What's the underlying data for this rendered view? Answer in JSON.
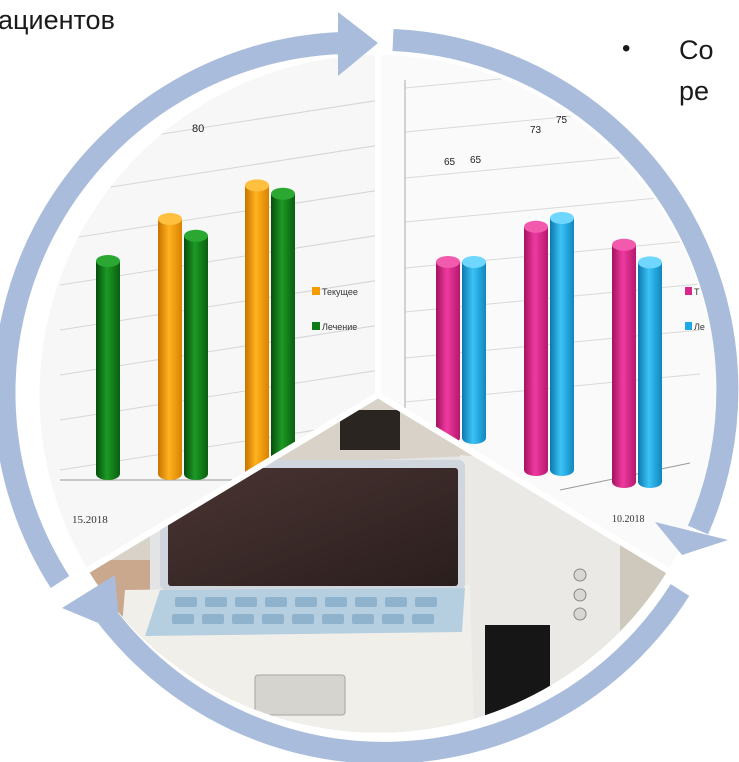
{
  "slide_text": {
    "top_left": "ациентов",
    "top_right_line1": "Со",
    "top_right_line2": "ре",
    "bullet": "•"
  },
  "colors": {
    "cycle_arrow": "#a9bcdb",
    "orange": "#f59c00",
    "green": "#0f7a16",
    "magenta": "#d8268b",
    "cyan": "#1ea8e6",
    "device_body": "#e9e7e3",
    "device_screen": "#3e2c2a",
    "keypad": "#b6cfe0"
  },
  "chart_data": [
    {
      "type": "bar",
      "partial": true,
      "categories": [
        "15.2018",
        "",
        ""
      ],
      "series": [
        {
          "name": "Текущее",
          "values": [
            null,
            80,
            88
          ]
        },
        {
          "name": "Лечение",
          "values": [
            70,
            76,
            86
          ]
        }
      ],
      "data_labels": [
        "80"
      ]
    },
    {
      "type": "bar",
      "partial": true,
      "categories": [
        "",
        "",
        "10.2018"
      ],
      "series": [
        {
          "name": "",
          "values": [
            65,
            73,
            78
          ]
        },
        {
          "name": "",
          "values": [
            65,
            75,
            74
          ]
        }
      ],
      "data_labels": [
        "65",
        "65",
        "73",
        "75"
      ],
      "legend_visible": [
        "Т",
        "Ле"
      ]
    }
  ],
  "legend_left": {
    "item1": "Текущее",
    "item2": "Лечение"
  },
  "legend_right": {
    "item1": "Т",
    "item2": "Ле"
  }
}
